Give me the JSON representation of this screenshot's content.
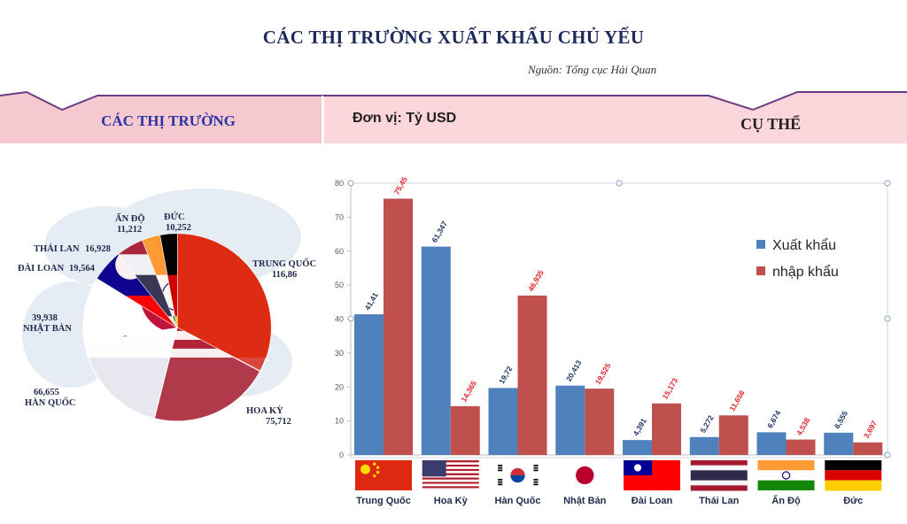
{
  "title": "CÁC THỊ TRƯỜNG XUẤT KHẨU CHỦ YẾU",
  "source": "Nguồn: Tổng cục Hải Quan",
  "banner": {
    "left_heading": "CÁC THỊ TRƯỜNG",
    "unit_label": "Đơn vị: Tỷ USD",
    "right_heading": "CỤ THỂ"
  },
  "colors": {
    "export": "#4f81bd",
    "import": "#c0504d",
    "banner": "#f6c8cf",
    "export_label": "#1f3864",
    "import_label": "#e0242a"
  },
  "chart_data": [
    {
      "type": "pie",
      "categories": [
        "TRUNG QUỐC",
        "HOA KỲ",
        "HÀN QUỐC",
        "NHẬT BẢN",
        "ĐÀI LOAN",
        "THÁI LAN",
        "ẤN ĐỘ",
        "ĐỨC"
      ],
      "values": [
        116.86,
        75.712,
        66.655,
        39.938,
        19.564,
        16.928,
        11.212,
        10.252
      ],
      "labels": [
        "116,86",
        "75,712",
        "66,655",
        "39,938",
        "19,564",
        "16,928",
        "11,212",
        "10,252"
      ]
    },
    {
      "type": "bar",
      "categories": [
        "Trung Quốc",
        "Hoa Kỳ",
        "Hàn Quốc",
        "Nhật Bản",
        "Đài Loan",
        "Thái Lan",
        "Ấn Độ",
        "Đức"
      ],
      "series": [
        {
          "name": "Xuất khẩu",
          "values": [
            41.41,
            61.347,
            19.72,
            20.413,
            4.391,
            5.272,
            6.674,
            6.555
          ],
          "labels": [
            "41,41",
            "61,347",
            "19,72",
            "20,413",
            "4,391",
            "5,272",
            "6,674",
            "6,555"
          ]
        },
        {
          "name": "nhập khẩu",
          "values": [
            75.45,
            14.365,
            46.935,
            19.525,
            15.173,
            11.656,
            4.538,
            3.697
          ],
          "labels": [
            "75,45",
            "14,365",
            "46,935",
            "19,525",
            "15,173",
            "11,656",
            "4,538",
            "3,697"
          ]
        }
      ],
      "ylim": [
        0,
        80
      ],
      "yticks": [
        "0",
        "10",
        "20",
        "30",
        "40",
        "50",
        "60",
        "70",
        "80"
      ],
      "legend": "right",
      "grid": false
    }
  ]
}
